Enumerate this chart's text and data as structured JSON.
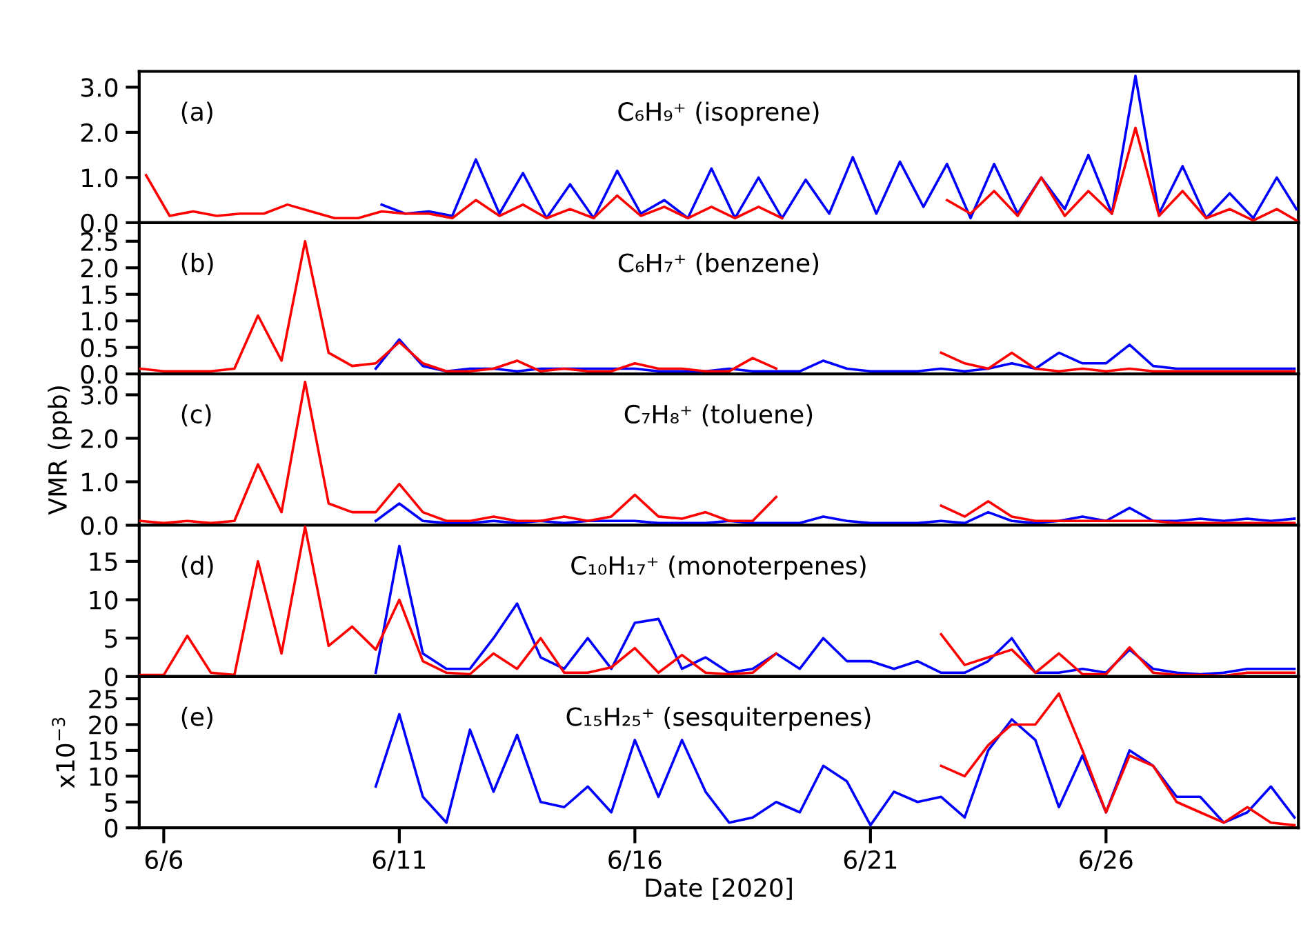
{
  "chart_data": [
    {
      "type": "line",
      "annotations": [
        "(a)",
        "C₆H₉⁺ (isoprene)"
      ],
      "tick_labels": "y",
      "grid": false,
      "xlim": [
        "2020-06-05T11:30",
        "2020-06-30T02:00"
      ],
      "ylim": [
        0,
        3.35
      ],
      "yticks": [
        {
          "value": 0,
          "label": "0.0"
        },
        {
          "value": 1,
          "label": "1.0"
        },
        {
          "value": 2,
          "label": "2.0"
        },
        {
          "value": 3,
          "label": "3.0"
        }
      ],
      "x": [
        "2020-06-05T15:00",
        "2020-06-06T03:00",
        "2020-06-06T15:00",
        "2020-06-07T03:00",
        "2020-06-07T15:00",
        "2020-06-08T03:00",
        "2020-06-08T15:00",
        "2020-06-09T03:00",
        "2020-06-09T15:00",
        "2020-06-10T03:00",
        "2020-06-10T15:00",
        "2020-06-11T03:00",
        "2020-06-11T15:00",
        "2020-06-12T03:00",
        "2020-06-12T15:00",
        "2020-06-13T03:00",
        "2020-06-13T15:00",
        "2020-06-14T03:00",
        "2020-06-14T15:00",
        "2020-06-15T03:00",
        "2020-06-15T15:00",
        "2020-06-16T03:00",
        "2020-06-16T15:00",
        "2020-06-17T03:00",
        "2020-06-17T15:00",
        "2020-06-18T03:00",
        "2020-06-18T15:00",
        "2020-06-19T03:00",
        "2020-06-19T15:00",
        "2020-06-20T03:00",
        "2020-06-20T15:00",
        "2020-06-21T03:00",
        "2020-06-21T15:00",
        "2020-06-22T03:00",
        "2020-06-22T15:00",
        "2020-06-23T03:00",
        "2020-06-23T15:00",
        "2020-06-24T03:00",
        "2020-06-24T15:00",
        "2020-06-25T03:00",
        "2020-06-25T15:00",
        "2020-06-26T03:00",
        "2020-06-26T15:00",
        "2020-06-27T03:00",
        "2020-06-27T15:00",
        "2020-06-28T03:00",
        "2020-06-28T15:00",
        "2020-06-29T03:00",
        "2020-06-29T15:00",
        "2020-06-30T01:00"
      ],
      "series": [
        {
          "color": "#0000ff",
          "values": [
            null,
            null,
            null,
            null,
            null,
            null,
            null,
            null,
            null,
            null,
            0.4,
            0.2,
            0.25,
            0.15,
            1.4,
            0.2,
            1.1,
            0.1,
            0.85,
            0.1,
            1.15,
            0.2,
            0.5,
            0.1,
            1.2,
            0.1,
            1.0,
            0.1,
            0.95,
            0.2,
            1.45,
            0.2,
            1.35,
            0.35,
            1.3,
            0.1,
            1.3,
            0.2,
            1.0,
            0.3,
            1.5,
            0.2,
            3.25,
            0.2,
            1.25,
            0.1,
            0.65,
            0.1,
            1.0,
            0.3
          ]
        },
        {
          "color": "#ff0000",
          "values": [
            1.05,
            0.15,
            0.25,
            0.15,
            0.2,
            0.2,
            0.4,
            0.25,
            0.1,
            0.1,
            0.25,
            0.2,
            0.2,
            0.1,
            0.5,
            0.15,
            0.4,
            0.1,
            0.3,
            0.1,
            0.6,
            0.15,
            0.35,
            0.1,
            0.35,
            0.1,
            0.35,
            0.1,
            null,
            null,
            null,
            null,
            null,
            null,
            0.5,
            0.2,
            0.7,
            0.15,
            1.0,
            0.15,
            0.7,
            0.2,
            2.1,
            0.15,
            0.7,
            0.1,
            0.3,
            0.05,
            0.3,
            0.05
          ]
        }
      ]
    },
    {
      "type": "line",
      "annotations": [
        "(b)",
        "C₆H₇⁺ (benzene)"
      ],
      "tick_labels": "y",
      "grid": false,
      "xlim": [
        "2020-06-05T11:30",
        "2020-06-30T02:00"
      ],
      "ylim": [
        0,
        2.85
      ],
      "yticks": [
        {
          "value": 0,
          "label": "0.0"
        },
        0.5,
        {
          "value": 1,
          "label": "1.0"
        },
        1.5,
        {
          "value": 2,
          "label": "2.0"
        },
        2.5
      ],
      "x": [
        "2020-06-05T12:00",
        "2020-06-06T00:00",
        "2020-06-06T12:00",
        "2020-06-07T00:00",
        "2020-06-07T12:00",
        "2020-06-08T00:00",
        "2020-06-08T12:00",
        "2020-06-09T00:00",
        "2020-06-09T12:00",
        "2020-06-10T00:00",
        "2020-06-10T12:00",
        "2020-06-11T00:00",
        "2020-06-11T12:00",
        "2020-06-12T00:00",
        "2020-06-12T12:00",
        "2020-06-13T00:00",
        "2020-06-13T12:00",
        "2020-06-14T00:00",
        "2020-06-14T12:00",
        "2020-06-15T00:00",
        "2020-06-15T12:00",
        "2020-06-16T00:00",
        "2020-06-16T12:00",
        "2020-06-17T00:00",
        "2020-06-17T12:00",
        "2020-06-18T00:00",
        "2020-06-18T12:00",
        "2020-06-19T00:00",
        "2020-06-19T12:00",
        "2020-06-20T00:00",
        "2020-06-20T12:00",
        "2020-06-21T00:00",
        "2020-06-21T12:00",
        "2020-06-22T00:00",
        "2020-06-22T12:00",
        "2020-06-23T00:00",
        "2020-06-23T12:00",
        "2020-06-24T00:00",
        "2020-06-24T12:00",
        "2020-06-25T00:00",
        "2020-06-25T12:00",
        "2020-06-26T00:00",
        "2020-06-26T12:00",
        "2020-06-27T00:00",
        "2020-06-27T12:00",
        "2020-06-28T00:00",
        "2020-06-28T12:00",
        "2020-06-29T00:00",
        "2020-06-29T12:00",
        "2020-06-30T00:00"
      ],
      "series": [
        {
          "color": "#0000ff",
          "values": [
            null,
            null,
            null,
            null,
            null,
            null,
            null,
            null,
            null,
            null,
            0.1,
            0.65,
            0.15,
            0.05,
            0.1,
            0.1,
            0.05,
            0.1,
            0.1,
            0.1,
            0.1,
            0.1,
            0.05,
            0.05,
            0.05,
            0.1,
            0.05,
            0.05,
            0.05,
            0.25,
            0.1,
            0.05,
            0.05,
            0.05,
            0.1,
            0.05,
            0.1,
            0.2,
            0.1,
            0.4,
            0.2,
            0.2,
            0.55,
            0.15,
            0.1,
            0.1,
            0.1,
            0.1,
            0.1,
            0.1
          ]
        },
        {
          "color": "#ff0000",
          "values": [
            0.1,
            0.05,
            0.05,
            0.05,
            0.1,
            1.1,
            0.25,
            2.5,
            0.4,
            0.15,
            0.2,
            0.6,
            0.2,
            0.05,
            0.05,
            0.1,
            0.25,
            0.05,
            0.1,
            0.05,
            0.05,
            0.2,
            0.1,
            0.1,
            0.05,
            0.05,
            0.3,
            0.1,
            null,
            null,
            null,
            null,
            null,
            null,
            0.4,
            0.2,
            0.1,
            0.4,
            0.1,
            0.05,
            0.1,
            0.05,
            0.1,
            0.05,
            0.05,
            0.05,
            0.05,
            0.05,
            0.05,
            0.05
          ]
        }
      ]
    },
    {
      "type": "line",
      "annotations": [
        "(c)",
        "C₇H₈⁺ (toluene)"
      ],
      "ylabel": "VMR (ppb)",
      "tick_labels": "y",
      "grid": false,
      "xlim": [
        "2020-06-05T11:30",
        "2020-06-30T02:00"
      ],
      "ylim": [
        0,
        3.48
      ],
      "yticks": [
        {
          "value": 0,
          "label": "0.0"
        },
        {
          "value": 1,
          "label": "1.0"
        },
        {
          "value": 2,
          "label": "2.0"
        },
        {
          "value": 3,
          "label": "3.0"
        }
      ],
      "x": [
        "2020-06-05T12:00",
        "2020-06-06T00:00",
        "2020-06-06T12:00",
        "2020-06-07T00:00",
        "2020-06-07T12:00",
        "2020-06-08T00:00",
        "2020-06-08T12:00",
        "2020-06-09T00:00",
        "2020-06-09T12:00",
        "2020-06-10T00:00",
        "2020-06-10T12:00",
        "2020-06-11T00:00",
        "2020-06-11T12:00",
        "2020-06-12T00:00",
        "2020-06-12T12:00",
        "2020-06-13T00:00",
        "2020-06-13T12:00",
        "2020-06-14T00:00",
        "2020-06-14T12:00",
        "2020-06-15T00:00",
        "2020-06-15T12:00",
        "2020-06-16T00:00",
        "2020-06-16T12:00",
        "2020-06-17T00:00",
        "2020-06-17T12:00",
        "2020-06-18T00:00",
        "2020-06-18T12:00",
        "2020-06-19T00:00",
        "2020-06-19T12:00",
        "2020-06-20T00:00",
        "2020-06-20T12:00",
        "2020-06-21T00:00",
        "2020-06-21T12:00",
        "2020-06-22T00:00",
        "2020-06-22T12:00",
        "2020-06-23T00:00",
        "2020-06-23T12:00",
        "2020-06-24T00:00",
        "2020-06-24T12:00",
        "2020-06-25T00:00",
        "2020-06-25T12:00",
        "2020-06-26T00:00",
        "2020-06-26T12:00",
        "2020-06-27T00:00",
        "2020-06-27T12:00",
        "2020-06-28T00:00",
        "2020-06-28T12:00",
        "2020-06-29T00:00",
        "2020-06-29T12:00",
        "2020-06-30T00:00"
      ],
      "series": [
        {
          "color": "#0000ff",
          "values": [
            null,
            null,
            null,
            null,
            null,
            null,
            null,
            null,
            null,
            null,
            0.1,
            0.5,
            0.1,
            0.05,
            0.05,
            0.1,
            0.05,
            0.1,
            0.05,
            0.1,
            0.1,
            0.1,
            0.05,
            0.05,
            0.05,
            0.1,
            0.05,
            0.05,
            0.05,
            0.2,
            0.1,
            0.05,
            0.05,
            0.05,
            0.1,
            0.05,
            0.3,
            0.1,
            0.05,
            0.1,
            0.2,
            0.1,
            0.4,
            0.1,
            0.1,
            0.15,
            0.1,
            0.15,
            0.1,
            0.15
          ]
        },
        {
          "color": "#ff0000",
          "values": [
            0.1,
            0.05,
            0.1,
            0.05,
            0.1,
            1.4,
            0.3,
            3.3,
            0.5,
            0.3,
            0.3,
            0.95,
            0.3,
            0.1,
            0.1,
            0.2,
            0.1,
            0.1,
            0.2,
            0.1,
            0.2,
            0.7,
            0.2,
            0.15,
            0.3,
            0.1,
            0.1,
            0.65,
            null,
            null,
            null,
            null,
            null,
            null,
            0.45,
            0.2,
            0.55,
            0.2,
            0.1,
            0.1,
            0.1,
            0.1,
            0.1,
            0.1,
            0.05,
            0.05,
            0.05,
            0.05,
            0.05,
            0.05
          ]
        }
      ]
    },
    {
      "type": "line",
      "annotations": [
        "(d)",
        "C₁₀H₁₇⁺ (monoterpenes)"
      ],
      "tick_labels": "y",
      "grid": false,
      "xlim": [
        "2020-06-05T11:30",
        "2020-06-30T02:00"
      ],
      "ylim": [
        0,
        19.7
      ],
      "yticks": [
        0,
        5,
        10,
        15
      ],
      "x": [
        "2020-06-05T12:00",
        "2020-06-06T00:00",
        "2020-06-06T12:00",
        "2020-06-07T00:00",
        "2020-06-07T12:00",
        "2020-06-08T00:00",
        "2020-06-08T12:00",
        "2020-06-09T00:00",
        "2020-06-09T12:00",
        "2020-06-10T00:00",
        "2020-06-10T12:00",
        "2020-06-11T00:00",
        "2020-06-11T12:00",
        "2020-06-12T00:00",
        "2020-06-12T12:00",
        "2020-06-13T00:00",
        "2020-06-13T12:00",
        "2020-06-14T00:00",
        "2020-06-14T12:00",
        "2020-06-15T00:00",
        "2020-06-15T12:00",
        "2020-06-16T00:00",
        "2020-06-16T12:00",
        "2020-06-17T00:00",
        "2020-06-17T12:00",
        "2020-06-18T00:00",
        "2020-06-18T12:00",
        "2020-06-19T00:00",
        "2020-06-19T12:00",
        "2020-06-20T00:00",
        "2020-06-20T12:00",
        "2020-06-21T00:00",
        "2020-06-21T12:00",
        "2020-06-22T00:00",
        "2020-06-22T12:00",
        "2020-06-23T00:00",
        "2020-06-23T12:00",
        "2020-06-24T00:00",
        "2020-06-24T12:00",
        "2020-06-25T00:00",
        "2020-06-25T12:00",
        "2020-06-26T00:00",
        "2020-06-26T12:00",
        "2020-06-27T00:00",
        "2020-06-27T12:00",
        "2020-06-28T00:00",
        "2020-06-28T12:00",
        "2020-06-29T00:00",
        "2020-06-29T12:00",
        "2020-06-30T00:00"
      ],
      "series": [
        {
          "color": "#0000ff",
          "values": [
            null,
            null,
            null,
            null,
            null,
            null,
            null,
            null,
            null,
            null,
            0.5,
            17,
            3,
            1,
            1,
            5,
            9.5,
            2.5,
            1,
            5,
            1,
            7,
            7.5,
            1,
            2.5,
            0.5,
            1,
            3,
            1,
            5,
            2,
            2,
            1,
            2,
            0.5,
            0.5,
            2,
            5,
            0.5,
            0.5,
            1,
            0.5,
            3.5,
            1,
            0.5,
            0.3,
            0.5,
            1,
            1,
            1
          ]
        },
        {
          "color": "#ff0000",
          "values": [
            0.2,
            0.2,
            5.3,
            0.5,
            0.2,
            15,
            3,
            19.5,
            4,
            6.5,
            3.5,
            10,
            2,
            0.5,
            0.3,
            3,
            1,
            5,
            0.5,
            0.5,
            1.2,
            3.7,
            0.5,
            2.8,
            0.5,
            0.3,
            0.5,
            3,
            null,
            null,
            null,
            null,
            null,
            null,
            5.5,
            1.5,
            2.5,
            3.5,
            0.5,
            3,
            0.3,
            0.3,
            3.8,
            0.5,
            0.2,
            0.2,
            0.1,
            0.5,
            0.5,
            0.5
          ]
        }
      ]
    },
    {
      "type": "line",
      "annotations": [
        "(e)",
        "C₁₅H₂₅⁺ (sesquiterpenes)"
      ],
      "ylabel": "x10$^{−3}$",
      "xlabel": "Date [2020]",
      "grid": false,
      "xlim": [
        "2020-06-05T11:30",
        "2020-06-30T02:00"
      ],
      "xticks": [
        {
          "value": "2020-06-06",
          "label": "6/6"
        },
        {
          "value": "2020-06-11",
          "label": "6/11"
        },
        {
          "value": "2020-06-16",
          "label": "6/16"
        },
        {
          "value": "2020-06-21",
          "label": "6/21"
        },
        {
          "value": "2020-06-26",
          "label": "6/26"
        }
      ],
      "ylim": [
        0,
        29.3
      ],
      "yticks": [
        0,
        5,
        10,
        15,
        20,
        25
      ],
      "x": [
        "2020-06-10T12:00",
        "2020-06-11T00:00",
        "2020-06-11T12:00",
        "2020-06-12T00:00",
        "2020-06-12T12:00",
        "2020-06-13T00:00",
        "2020-06-13T12:00",
        "2020-06-14T00:00",
        "2020-06-14T12:00",
        "2020-06-15T00:00",
        "2020-06-15T12:00",
        "2020-06-16T00:00",
        "2020-06-16T12:00",
        "2020-06-17T00:00",
        "2020-06-17T12:00",
        "2020-06-18T00:00",
        "2020-06-18T12:00",
        "2020-06-19T00:00",
        "2020-06-19T12:00",
        "2020-06-20T00:00",
        "2020-06-20T12:00",
        "2020-06-21T00:00",
        "2020-06-21T12:00",
        "2020-06-22T00:00",
        "2020-06-22T12:00",
        "2020-06-23T00:00",
        "2020-06-23T12:00",
        "2020-06-24T00:00",
        "2020-06-24T12:00",
        "2020-06-25T00:00",
        "2020-06-25T12:00",
        "2020-06-26T00:00",
        "2020-06-26T12:00",
        "2020-06-27T00:00",
        "2020-06-27T12:00",
        "2020-06-28T00:00",
        "2020-06-28T12:00",
        "2020-06-29T00:00",
        "2020-06-29T12:00",
        "2020-06-30T00:00"
      ],
      "series": [
        {
          "color": "#0000ff",
          "values": [
            8,
            22,
            6,
            1,
            19,
            7,
            18,
            5,
            4,
            8,
            3,
            17,
            6,
            17,
            7,
            1,
            2,
            5,
            3,
            12,
            9,
            0.5,
            7,
            5,
            6,
            2,
            15,
            21,
            17,
            4,
            14,
            3,
            15,
            12,
            6,
            6,
            1,
            3,
            8,
            2
          ]
        },
        {
          "color": "#ff0000",
          "values": [
            null,
            null,
            null,
            null,
            null,
            null,
            null,
            null,
            null,
            null,
            null,
            null,
            null,
            null,
            null,
            null,
            null,
            null,
            null,
            null,
            null,
            null,
            null,
            null,
            12,
            10,
            16,
            20,
            20,
            26,
            15,
            3,
            14,
            12,
            5,
            3,
            1,
            4,
            1,
            0.5
          ]
        }
      ]
    }
  ]
}
